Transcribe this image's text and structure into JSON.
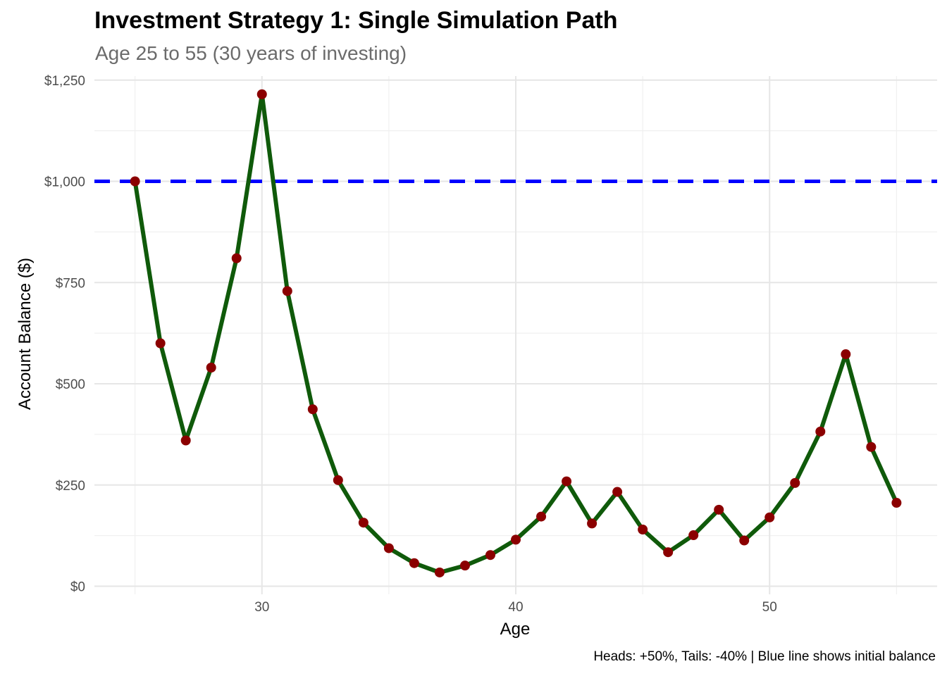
{
  "chart_data": {
    "type": "line",
    "title": "Investment Strategy 1: Single Simulation Path",
    "subtitle": "Age 25 to 55 (30 years of investing)",
    "caption": "Heads: +50%, Tails: -40% | Blue line shows initial balance",
    "xlabel": "Age",
    "ylabel": "Account Balance ($)",
    "xlim": [
      23.4,
      56.6
    ],
    "ylim": [
      -20,
      1260
    ],
    "x_ticks": [
      30,
      40,
      50
    ],
    "x_tick_labels": [
      "30",
      "40",
      "50"
    ],
    "y_ticks": [
      0,
      250,
      500,
      750,
      1000,
      1250
    ],
    "y_tick_labels": [
      "$0",
      "$250",
      "$500",
      "$750",
      "$1,000",
      "$1,250"
    ],
    "grid": true,
    "series": [
      {
        "x": [
          25,
          26,
          27,
          28,
          29,
          30,
          31,
          32,
          33,
          34,
          35,
          36,
          37,
          38,
          39,
          40,
          41,
          42,
          43,
          44,
          45,
          46,
          47,
          48,
          49,
          50,
          51,
          52,
          53,
          54,
          55
        ],
        "y": [
          1000,
          600,
          360,
          540,
          810,
          1215,
          729,
          437,
          262,
          157,
          94,
          57,
          34,
          51,
          77,
          115,
          172,
          259,
          155,
          233,
          140,
          84,
          126,
          189,
          113,
          170,
          255,
          382,
          573,
          344,
          206
        ],
        "line_color": "#0f5a0a",
        "point_color": "#8b0000"
      }
    ],
    "reference_line": {
      "y": 1000,
      "color": "#0000ff",
      "style": "dashed"
    }
  }
}
